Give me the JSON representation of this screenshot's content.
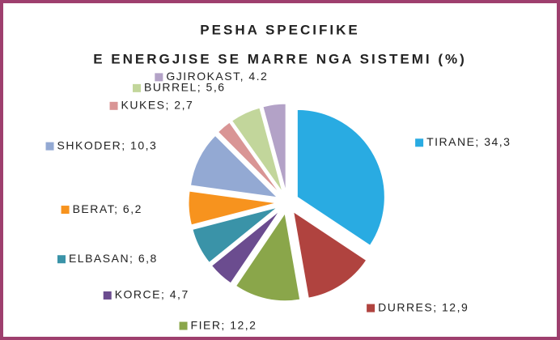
{
  "chart_data": {
    "type": "pie",
    "title": [
      "PESHA SPECIFIKE",
      "E ENERGJISE SE MARRE NGA SISTEMI (%)"
    ],
    "values": [
      34.3,
      12.9,
      12.2,
      4.7,
      6.8,
      6.2,
      10.3,
      2.7,
      5.6,
      4.2
    ],
    "value_labels": [
      "TIRANE; 34,3",
      "DURRES; 12,9",
      "FIER; 12,2",
      "KORCE; 4,7",
      "ELBASAN; 6,8",
      "BERAT; 6,2",
      "SHKODER; 10,3",
      "KUKES; 2,7",
      "BURREL; 5,6",
      "GJIROKAST, 4.2"
    ],
    "colors": [
      "#29abe2",
      "#b0433f",
      "#8aa64a",
      "#6b4c8f",
      "#3a93a8",
      "#f7931e",
      "#93a9d3",
      "#d99595",
      "#c2d69b",
      "#b3a2c7"
    ]
  }
}
